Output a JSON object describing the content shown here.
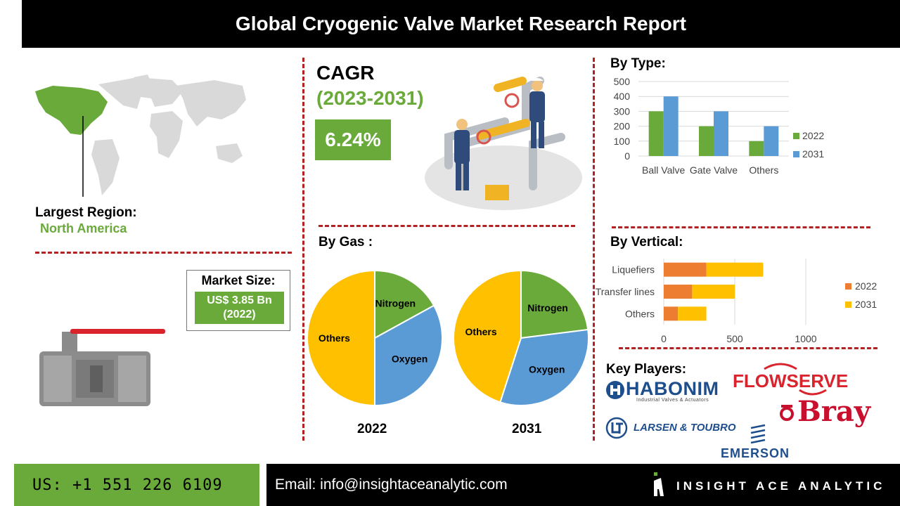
{
  "title": "Global Cryogenic Valve Market Research Report",
  "largest_region": {
    "label": "Largest Region:",
    "value": "North America"
  },
  "cagr": {
    "title": "CAGR",
    "period": "(2023-2031)",
    "value": "6.24%"
  },
  "market_size": {
    "label": "Market Size:",
    "value": "US$ 3.85 Bn",
    "year": "(2022)"
  },
  "footer": {
    "phone": "US: +1 551 226 6109",
    "email": "Email: info@insightaceanalytic.com",
    "brand": "INSIGHT ACE ANALYTIC"
  },
  "key_players": {
    "label": "Key Players:",
    "logos": [
      "HABONIM",
      "Industrial Valves & Actuators",
      "FLOWSERVE",
      "Bray",
      "LARSEN & TOUBRO",
      "EMERSON"
    ]
  },
  "colors": {
    "green": "#6aaa3a",
    "blue": "#5b9bd5",
    "orange": "#ed7d31",
    "yellow": "#ffc000",
    "red_dash": "#b22222",
    "world_gray": "#d9d9d9"
  },
  "chart_data": [
    {
      "type": "bar",
      "title": "By Type:",
      "categories": [
        "Ball Valve",
        "Gate Valve",
        "Others"
      ],
      "series": [
        {
          "name": "2022",
          "values": [
            300,
            200,
            100
          ],
          "color": "#6aaa3a"
        },
        {
          "name": "2031",
          "values": [
            400,
            300,
            200
          ],
          "color": "#5b9bd5"
        }
      ],
      "ylim": [
        0,
        500
      ],
      "yticks": [
        "0",
        "100",
        "200",
        "300",
        "400",
        "500"
      ],
      "grid": true,
      "legend": "right"
    },
    {
      "type": "bar",
      "orientation": "horizontal",
      "stacked": true,
      "title": "By Vertical:",
      "categories": [
        "Liquefiers",
        "Transfer lines",
        "Others"
      ],
      "series": [
        {
          "name": "2022",
          "values": [
            300,
            200,
            100
          ],
          "color": "#ed7d31"
        },
        {
          "name": "2031",
          "values": [
            400,
            300,
            200
          ],
          "color": "#ffc000"
        }
      ],
      "xlim": [
        0,
        1000
      ],
      "xticks": [
        "0",
        "500",
        "1000"
      ],
      "grid": true,
      "legend": "right"
    },
    {
      "type": "pie",
      "title": "By Gas :",
      "label": "2022",
      "slices": [
        {
          "name": "Nitrogen",
          "value": 17,
          "color": "#6aaa3a"
        },
        {
          "name": "Oxygen",
          "value": 33,
          "color": "#5b9bd5"
        },
        {
          "name": "Others",
          "value": 50,
          "color": "#ffc000"
        }
      ]
    },
    {
      "type": "pie",
      "label": "2031",
      "slices": [
        {
          "name": "Nitrogen",
          "value": 23,
          "color": "#6aaa3a"
        },
        {
          "name": "Oxygen",
          "value": 32,
          "color": "#5b9bd5"
        },
        {
          "name": "Others",
          "value": 45,
          "color": "#ffc000"
        }
      ]
    }
  ]
}
